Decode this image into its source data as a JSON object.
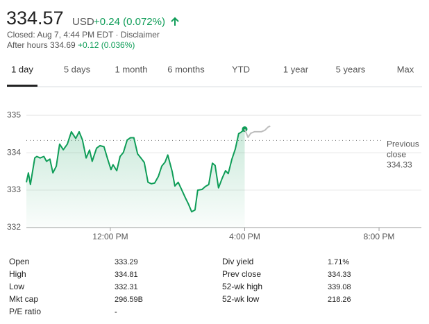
{
  "header": {
    "price": "334.57",
    "currency": "USD",
    "change": "+0.24 (0.072%)",
    "status": "Closed: Aug 7, 4:44 PM EDT · Disclaimer",
    "after_hours": "After hours 334.69",
    "after_hours_change": "+0.12 (0.036%)"
  },
  "tabs": [
    "1 day",
    "5 days",
    "1 month",
    "6 months",
    "YTD",
    "1 year",
    "5 years",
    "Max"
  ],
  "active_tab": 0,
  "chart_data": {
    "type": "line",
    "xlim": [
      9.5,
      21.26
    ],
    "xticks": [
      {
        "value": 12,
        "label": "12:00 PM"
      },
      {
        "value": 16,
        "label": "4:00 PM"
      },
      {
        "value": 20,
        "label": "8:00 PM"
      }
    ],
    "ylim": [
      332,
      335.3
    ],
    "yticks": [
      332,
      333,
      334,
      335
    ],
    "grid": true,
    "previous_close": {
      "label": "Previous close",
      "value": 334.33
    },
    "series": [
      {
        "color": "#0f9d58",
        "fill": true,
        "end_marker": true,
        "x": [
          9.5,
          9.56,
          9.62,
          9.75,
          9.81,
          9.91,
          10.02,
          10.1,
          10.2,
          10.29,
          10.39,
          10.49,
          10.6,
          10.72,
          10.84,
          10.97,
          11.07,
          11.17,
          11.28,
          11.38,
          11.46,
          11.59,
          11.69,
          11.81,
          11.92,
          12.02,
          12.08,
          12.19,
          12.29,
          12.39,
          12.5,
          12.6,
          12.7,
          12.81,
          12.91,
          13.01,
          13.12,
          13.22,
          13.32,
          13.43,
          13.53,
          13.63,
          13.71,
          13.84,
          13.92,
          14.02,
          14.13,
          14.23,
          14.33,
          14.42,
          14.52,
          14.6,
          14.73,
          14.83,
          14.93,
          15.04,
          15.12,
          15.22,
          15.33,
          15.43,
          15.51,
          15.62,
          15.72,
          15.82,
          15.88,
          16.0
        ],
        "values": [
          333.21,
          333.46,
          333.15,
          333.86,
          333.9,
          333.86,
          333.9,
          333.77,
          333.83,
          333.46,
          333.64,
          334.23,
          334.08,
          334.23,
          334.56,
          334.38,
          334.56,
          334.34,
          333.86,
          334.07,
          333.77,
          334.12,
          334.19,
          334.16,
          333.83,
          333.55,
          333.68,
          333.52,
          333.9,
          334.01,
          334.34,
          334.4,
          334.4,
          333.97,
          333.86,
          333.74,
          333.21,
          333.17,
          333.19,
          333.37,
          333.64,
          333.75,
          333.94,
          333.5,
          333.11,
          333.21,
          333.0,
          332.8,
          332.62,
          332.42,
          332.47,
          333.0,
          333.02,
          333.1,
          333.15,
          333.72,
          333.66,
          333.06,
          333.32,
          333.52,
          333.44,
          333.83,
          334.1,
          334.51,
          334.54,
          334.63
        ]
      },
      {
        "color": "#bdbdbd",
        "fill": false,
        "end_marker": false,
        "x": [
          16.0,
          16.1,
          16.18,
          16.29,
          16.39,
          16.49,
          16.6,
          16.7,
          16.76
        ],
        "values": [
          334.63,
          334.41,
          334.52,
          334.56,
          334.56,
          334.56,
          334.6,
          334.69,
          334.71
        ]
      }
    ]
  },
  "stats": [
    [
      [
        "Open",
        "333.29"
      ],
      [
        "High",
        "334.81"
      ],
      [
        "Low",
        "332.31"
      ],
      [
        "Mkt cap",
        "296.59B"
      ],
      [
        "P/E ratio",
        "-"
      ]
    ],
    [
      [
        "Div yield",
        "1.71%"
      ],
      [
        "Prev close",
        "334.33"
      ],
      [
        "52-wk high",
        "339.08"
      ],
      [
        "52-wk low",
        "218.26"
      ]
    ]
  ]
}
